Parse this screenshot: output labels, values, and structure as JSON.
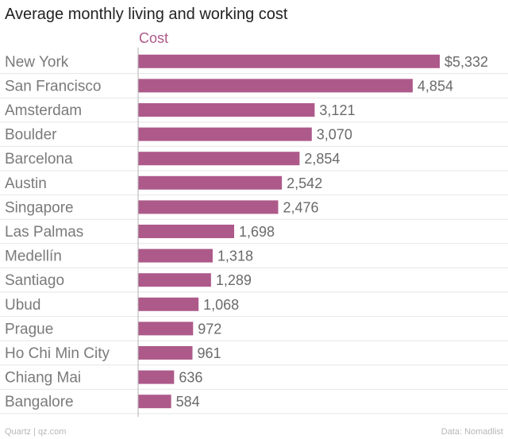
{
  "colors": {
    "bar": "#ad5a8a",
    "series_label": "#ad5a8a",
    "grid": "#e6e6e6",
    "axis": "#b3b3b3"
  },
  "chart_data": {
    "type": "bar",
    "orientation": "horizontal",
    "title": "Average monthly living and working cost",
    "series_name": "Cost",
    "categories": [
      "New York",
      "San Francisco",
      "Amsterdam",
      "Boulder",
      "Barcelona",
      "Austin",
      "Singapore",
      "Las Palmas",
      "Medellín",
      "Santiago",
      "Ubud",
      "Prague",
      "Ho Chi Min City",
      "Chiang Mai",
      "Bangalore"
    ],
    "values": [
      5332,
      4854,
      3121,
      3070,
      2854,
      2542,
      2476,
      1698,
      1318,
      1289,
      1068,
      972,
      961,
      636,
      584
    ],
    "value_labels": [
      "$5,332",
      "4,854",
      "3,121",
      "3,070",
      "2,854",
      "2,542",
      "2,476",
      "1,698",
      "1,318",
      "1,289",
      "1,068",
      "972",
      "961",
      "636",
      "584"
    ],
    "xlim": [
      0,
      5332
    ],
    "grid": true
  },
  "footer": {
    "source_left": "Quartz | qz.com",
    "source_right": "Data: Nomadlist"
  }
}
